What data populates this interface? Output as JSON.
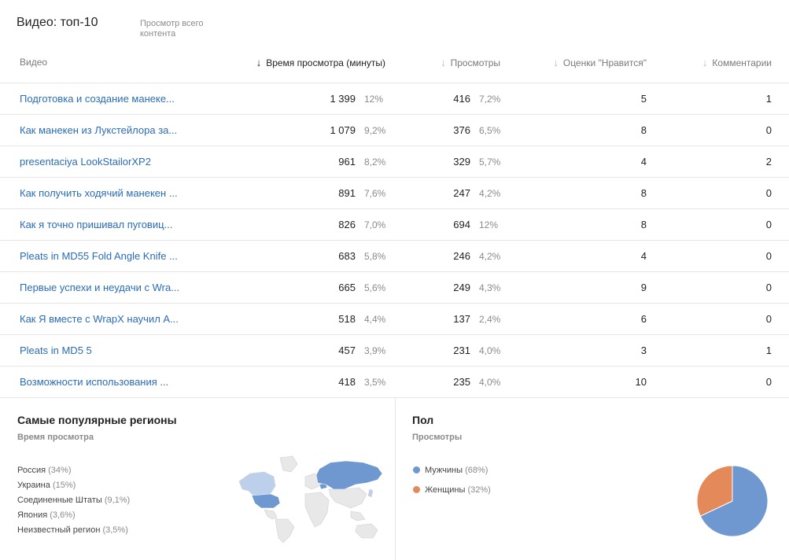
{
  "header": {
    "title": "Видео: топ-10",
    "subtitle": "Просмотр всего контента"
  },
  "columns": {
    "video": "Видео",
    "watch_time": "Время просмотра (минуты)",
    "views": "Просмотры",
    "likes": "Оценки \"Нравится\"",
    "comments": "Комментарии"
  },
  "rows": [
    {
      "title": "Подготовка и создание манеке...",
      "watch": "1 399",
      "watch_pct": "12%",
      "views": "416",
      "views_pct": "7,2%",
      "likes": "5",
      "comments": "1"
    },
    {
      "title": "Как манекен из Лукстейлора за...",
      "watch": "1 079",
      "watch_pct": "9,2%",
      "views": "376",
      "views_pct": "6,5%",
      "likes": "8",
      "comments": "0"
    },
    {
      "title": "presentaciya LookStailorXP2",
      "watch": "961",
      "watch_pct": "8,2%",
      "views": "329",
      "views_pct": "5,7%",
      "likes": "4",
      "comments": "2"
    },
    {
      "title": "Как получить ходячий манекен ...",
      "watch": "891",
      "watch_pct": "7,6%",
      "views": "247",
      "views_pct": "4,2%",
      "likes": "8",
      "comments": "0"
    },
    {
      "title": "Как я точно пришивал пуговиц...",
      "watch": "826",
      "watch_pct": "7,0%",
      "views": "694",
      "views_pct": "12%",
      "likes": "8",
      "comments": "0"
    },
    {
      "title": "Pleats in MD55 Fold Angle Knife ...",
      "watch": "683",
      "watch_pct": "5,8%",
      "views": "246",
      "views_pct": "4,2%",
      "likes": "4",
      "comments": "0"
    },
    {
      "title": "Первые успехи и неудачи с Wra...",
      "watch": "665",
      "watch_pct": "5,6%",
      "views": "249",
      "views_pct": "4,3%",
      "likes": "9",
      "comments": "0"
    },
    {
      "title": "Как Я вместе с WrapX научил А...",
      "watch": "518",
      "watch_pct": "4,4%",
      "views": "137",
      "views_pct": "2,4%",
      "likes": "6",
      "comments": "0"
    },
    {
      "title": "Pleats in MD5 5",
      "watch": "457",
      "watch_pct": "3,9%",
      "views": "231",
      "views_pct": "4,0%",
      "likes": "3",
      "comments": "1"
    },
    {
      "title": "Возможности использования ...",
      "watch": "418",
      "watch_pct": "3,5%",
      "views": "235",
      "views_pct": "4,0%",
      "likes": "10",
      "comments": "0"
    }
  ],
  "regions": {
    "title": "Самые популярные регионы",
    "subtitle": "Время просмотра",
    "items": [
      {
        "name": "Россия",
        "pct": "(34%)"
      },
      {
        "name": "Украина",
        "pct": "(15%)"
      },
      {
        "name": "Соединенные Штаты",
        "pct": "(9,1%)"
      },
      {
        "name": "Япония",
        "pct": "(3,6%)"
      },
      {
        "name": "Неизвестный регион",
        "pct": "(3,5%)"
      }
    ]
  },
  "gender": {
    "title": "Пол",
    "subtitle": "Просмотры",
    "items": [
      {
        "name": "Мужчины",
        "pct": "(68%)",
        "color": "#6f97d0"
      },
      {
        "name": "Женщины",
        "pct": "(32%)",
        "color": "#e3895a"
      }
    ]
  },
  "chart_data": {
    "type": "pie",
    "categories": [
      "Мужчины",
      "Женщины"
    ],
    "values": [
      68,
      32
    ],
    "colors": [
      "#6f97d0",
      "#e3895a"
    ]
  },
  "colors": {
    "link": "#2a6cb7",
    "map_highlight": "#6f97d0",
    "map_light": "#bcd0ec"
  }
}
